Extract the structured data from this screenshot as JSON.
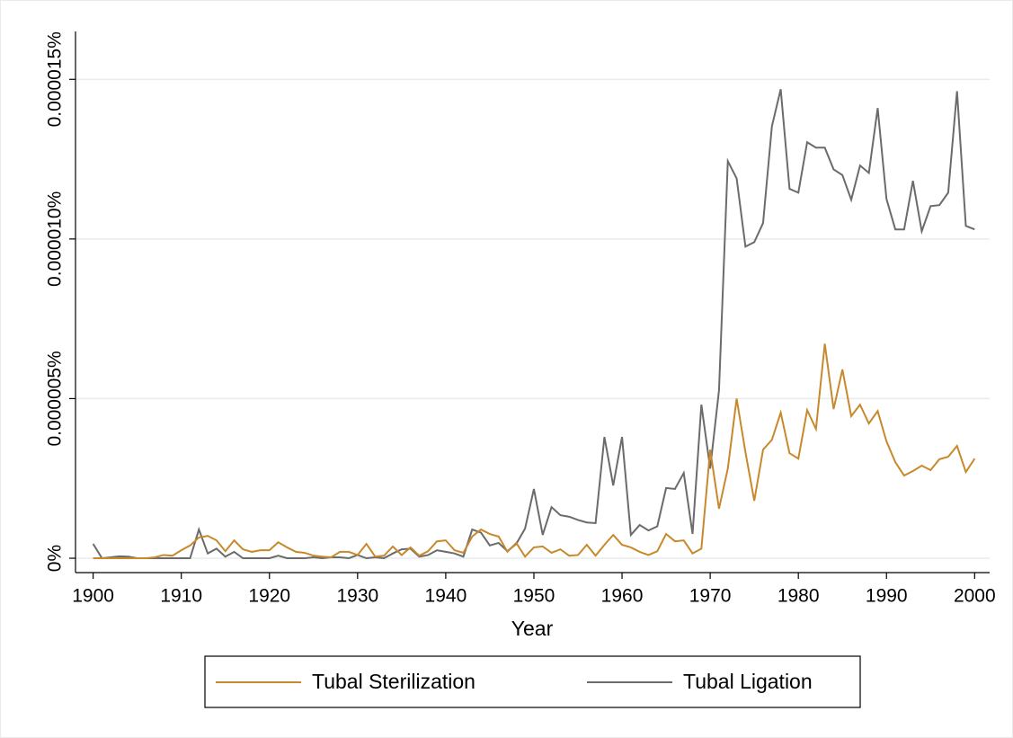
{
  "chart_data": {
    "type": "line",
    "xlabel": "Year",
    "x": [
      1900,
      1901,
      1902,
      1903,
      1904,
      1905,
      1906,
      1907,
      1908,
      1909,
      1910,
      1911,
      1912,
      1913,
      1914,
      1915,
      1916,
      1917,
      1918,
      1919,
      1920,
      1921,
      1922,
      1923,
      1924,
      1925,
      1926,
      1927,
      1928,
      1929,
      1930,
      1931,
      1932,
      1933,
      1934,
      1935,
      1936,
      1937,
      1938,
      1939,
      1940,
      1941,
      1942,
      1943,
      1944,
      1945,
      1946,
      1947,
      1948,
      1949,
      1950,
      1951,
      1952,
      1953,
      1954,
      1955,
      1956,
      1957,
      1958,
      1959,
      1960,
      1961,
      1962,
      1963,
      1964,
      1965,
      1966,
      1967,
      1968,
      1969,
      1970,
      1971,
      1972,
      1973,
      1974,
      1975,
      1976,
      1977,
      1978,
      1979,
      1980,
      1981,
      1982,
      1983,
      1984,
      1985,
      1986,
      1987,
      1988,
      1989,
      1990,
      1991,
      1992,
      1993,
      1994,
      1995,
      1996,
      1997,
      1998,
      1999,
      2000
    ],
    "series": [
      {
        "name": "Tubal Sterilization",
        "color": "#c8892c",
        "values": [
          0,
          0,
          0,
          0,
          0,
          0,
          0,
          3e-08,
          1e-07,
          8e-08,
          2.5e-07,
          4e-07,
          6.5e-07,
          7e-07,
          5.6e-07,
          2.2e-07,
          5.6e-07,
          2.8e-07,
          2e-07,
          2.5e-07,
          2.5e-07,
          5e-07,
          3.4e-07,
          2e-07,
          1.7e-07,
          8e-08,
          5e-08,
          3e-08,
          2e-07,
          2e-07,
          1e-07,
          4.5e-07,
          5e-08,
          8e-08,
          3.7e-07,
          1e-07,
          3.4e-07,
          8e-08,
          2.2e-07,
          5.3e-07,
          5.6e-07,
          2.5e-07,
          1.7e-07,
          6.8e-07,
          9e-07,
          7.6e-07,
          6.8e-07,
          2e-07,
          4.8e-07,
          5e-08,
          3.4e-07,
          3.7e-07,
          1.7e-07,
          2.8e-07,
          8e-08,
          1e-07,
          4.2e-07,
          8e-08,
          4.2e-07,
          7.3e-07,
          4.2e-07,
          3.4e-07,
          2e-07,
          1e-07,
          2.2e-07,
          7.6e-07,
          5.3e-07,
          5.6e-07,
          1.5e-07,
          3e-07,
          3.4e-06,
          1.55e-06,
          2.81e-06,
          5e-06,
          3.32e-06,
          1.8e-06,
          3.4e-06,
          3.71e-06,
          4.56e-06,
          3.29e-06,
          3.12e-06,
          4.64e-06,
          4.05e-06,
          6.72e-06,
          4.67e-06,
          5.91e-06,
          4.45e-06,
          4.81e-06,
          4.22e-06,
          4.61e-06,
          3.66e-06,
          3.01e-06,
          2.59e-06,
          2.73e-06,
          2.9e-06,
          2.76e-06,
          3.1e-06,
          3.18e-06,
          3.52e-06,
          2.7e-06,
          3.12e-06
        ]
      },
      {
        "name": "Tubal Ligation",
        "color": "#6b6b6b",
        "values": [
          4.5e-07,
          0,
          3e-08,
          6e-08,
          5e-08,
          0,
          0,
          0,
          0,
          0,
          0,
          0,
          9e-07,
          1.5e-07,
          3e-07,
          5e-08,
          2e-07,
          0,
          0,
          0,
          0,
          8e-08,
          0,
          0,
          0,
          3e-08,
          0,
          3e-08,
          3e-08,
          0,
          1e-07,
          0,
          3e-08,
          0,
          1.5e-07,
          2.8e-07,
          3e-07,
          5e-08,
          1e-07,
          2.5e-07,
          2e-07,
          1.5e-07,
          5e-08,
          9e-07,
          8e-07,
          4e-07,
          4.8e-07,
          2.2e-07,
          4.5e-07,
          9.3e-07,
          2.17e-06,
          7.3e-07,
          1.6e-06,
          1.35e-06,
          1.3e-06,
          1.2e-06,
          1.12e-06,
          1.1e-06,
          3.8e-06,
          2.28e-06,
          3.8e-06,
          7.3e-07,
          1.04e-06,
          8.7e-07,
          1e-06,
          2.2e-06,
          2.17e-06,
          2.67e-06,
          7.6e-07,
          4.81e-06,
          2.81e-06,
          5.26e-06,
          1.244e-05,
          1.19e-05,
          9.76e-06,
          9.9e-06,
          1.05e-05,
          1.353e-05,
          1.469e-05,
          1.157e-05,
          1.145e-05,
          1.303e-05,
          1.286e-05,
          1.286e-05,
          1.218e-05,
          1.2e-05,
          1.123e-05,
          1.23e-05,
          1.207e-05,
          1.41e-05,
          1.125e-05,
          1.03e-05,
          1.03e-05,
          1.182e-05,
          1.024e-05,
          1.103e-05,
          1.106e-05,
          1.145e-05,
          1.463e-05,
          1.041e-05,
          1.03e-05
        ]
      }
    ],
    "xlim": [
      1898,
      2001.7
    ],
    "xticks": [
      1900,
      1910,
      1920,
      1930,
      1940,
      1950,
      1960,
      1970,
      1980,
      1990,
      2000
    ],
    "ylim": [
      -4.5e-07,
      1.65e-05
    ],
    "yticks": [
      {
        "value": 0,
        "label": "0%"
      },
      {
        "value": 5e-06,
        "label": "0.000005%"
      },
      {
        "value": 1e-05,
        "label": "0.000010%"
      },
      {
        "value": 1.5e-05,
        "label": "0.000015%"
      }
    ],
    "grid": true,
    "legend": "bottom"
  }
}
